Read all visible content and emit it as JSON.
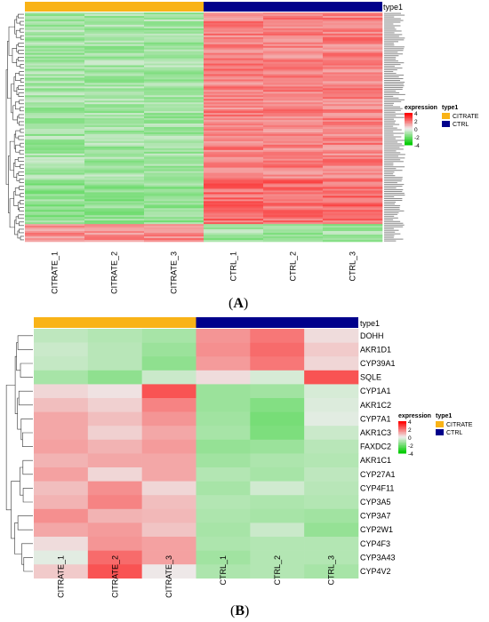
{
  "panels": [
    {
      "label_open": "(",
      "label_letter": "A",
      "label_close": ")",
      "annotation_title": "type1",
      "samples": [
        "CITRATE_1",
        "CITRATE_2",
        "CITRATE_3",
        "CTRL_1",
        "CTRL_2",
        "CTRL_3"
      ],
      "groups": [
        {
          "name": "CITRATE",
          "color": "#F9B317"
        },
        {
          "name": "CTRL",
          "color": "#00008B"
        }
      ],
      "legend": {
        "expression_title": "expression",
        "type_title": "type1",
        "ticks": [
          "4",
          "2",
          "0",
          "-2",
          "-4"
        ],
        "group_labels": [
          "CITRATE",
          "CTRL"
        ]
      },
      "rows_note": "approx. 130 gene rows; labels too small to read",
      "row_pattern": [
        {
          "citrate": -1.2,
          "ctrl": 1.8,
          "rows": 95
        },
        {
          "citrate": -1.6,
          "ctrl": 2.2,
          "rows": 25
        },
        {
          "citrate": 1.6,
          "ctrl": -1.3,
          "rows": 10
        }
      ]
    },
    {
      "label_open": "(",
      "label_letter": "B",
      "label_close": ")",
      "annotation_title": "type1",
      "samples": [
        "CITRATE_1",
        "CITRATE_2",
        "CITRATE_3",
        "CTRL_1",
        "CTRL_2",
        "CTRL_3"
      ],
      "groups": [
        {
          "name": "CITRATE",
          "color": "#F9B317"
        },
        {
          "name": "CTRL",
          "color": "#00008B"
        }
      ],
      "legend": {
        "expression_title": "expression",
        "type_title": "type1",
        "ticks": [
          "4",
          "2",
          "0",
          "-2",
          "-4"
        ],
        "group_labels": [
          "CITRATE",
          "CTRL"
        ]
      }
    }
  ],
  "chart_data": [
    {
      "type": "heatmap",
      "title": "",
      "columns": [
        "CITRATE_1",
        "CITRATE_2",
        "CITRATE_3",
        "CTRL_1",
        "CTRL_2",
        "CTRL_3"
      ],
      "rows": [
        "approx. 130 unlabeled genes"
      ],
      "color_scale": {
        "min": -4,
        "max": 4,
        "low": "#00CC00",
        "mid": "#EEEEEE",
        "high": "#FF0000"
      },
      "pattern": "CITRATE samples mostly low (green), CTRL samples mostly high (red); bottom block of ~10 genes reversed"
    },
    {
      "type": "heatmap",
      "title": "",
      "columns": [
        "CITRATE_1",
        "CITRATE_2",
        "CITRATE_3",
        "CTRL_1",
        "CTRL_2",
        "CTRL_3"
      ],
      "rows": [
        "DOHH",
        "AKR1D1",
        "CYP39A1",
        "SQLE",
        "CYP1A1",
        "AKR1C2",
        "CYP7A1",
        "AKR1C3",
        "FAXDC2",
        "AKR1C1",
        "CYP27A1",
        "CYP4F11",
        "CYP3A5",
        "CYP3A7",
        "CYP2W1",
        "CYP4F3",
        "CYP3A43",
        "CYP4V2"
      ],
      "values": [
        [
          -0.8,
          -1.0,
          -1.2,
          1.5,
          2.0,
          0.3
        ],
        [
          -0.6,
          -0.9,
          -1.4,
          1.6,
          2.2,
          0.6
        ],
        [
          -0.7,
          -0.9,
          -1.6,
          1.4,
          2.0,
          0.4
        ],
        [
          -1.2,
          -1.6,
          -0.6,
          0.3,
          -0.4,
          2.6
        ],
        [
          0.4,
          0.2,
          2.6,
          -1.4,
          -1.3,
          -0.4
        ],
        [
          0.8,
          0.5,
          1.8,
          -1.4,
          -1.8,
          -0.3
        ],
        [
          1.2,
          0.8,
          1.5,
          -1.3,
          -2.0,
          -0.2
        ],
        [
          1.2,
          0.5,
          1.2,
          -1.2,
          -1.9,
          -0.6
        ],
        [
          1.3,
          1.0,
          1.4,
          -1.5,
          -1.4,
          -0.9
        ],
        [
          1.0,
          1.2,
          1.2,
          -1.3,
          -1.1,
          -1.0
        ],
        [
          1.3,
          0.4,
          1.2,
          -1.0,
          -1.2,
          -0.8
        ],
        [
          0.8,
          1.6,
          0.4,
          -1.2,
          -0.5,
          -0.9
        ],
        [
          1.0,
          1.8,
          0.8,
          -1.0,
          -1.1,
          -1.0
        ],
        [
          1.6,
          1.0,
          0.9,
          -1.1,
          -1.2,
          -1.3
        ],
        [
          1.2,
          1.4,
          0.7,
          -1.2,
          -0.6,
          -1.5
        ],
        [
          0.3,
          1.5,
          1.3,
          -1.1,
          -1.0,
          -1.0
        ],
        [
          -0.2,
          2.2,
          1.3,
          -1.3,
          -1.0,
          -1.0
        ],
        [
          0.6,
          2.6,
          0.1,
          -1.1,
          -1.0,
          -1.2
        ]
      ],
      "color_scale": {
        "min": -4,
        "max": 4,
        "low": "#00CC00",
        "mid": "#EEEEEE",
        "high": "#FF0000"
      }
    }
  ]
}
